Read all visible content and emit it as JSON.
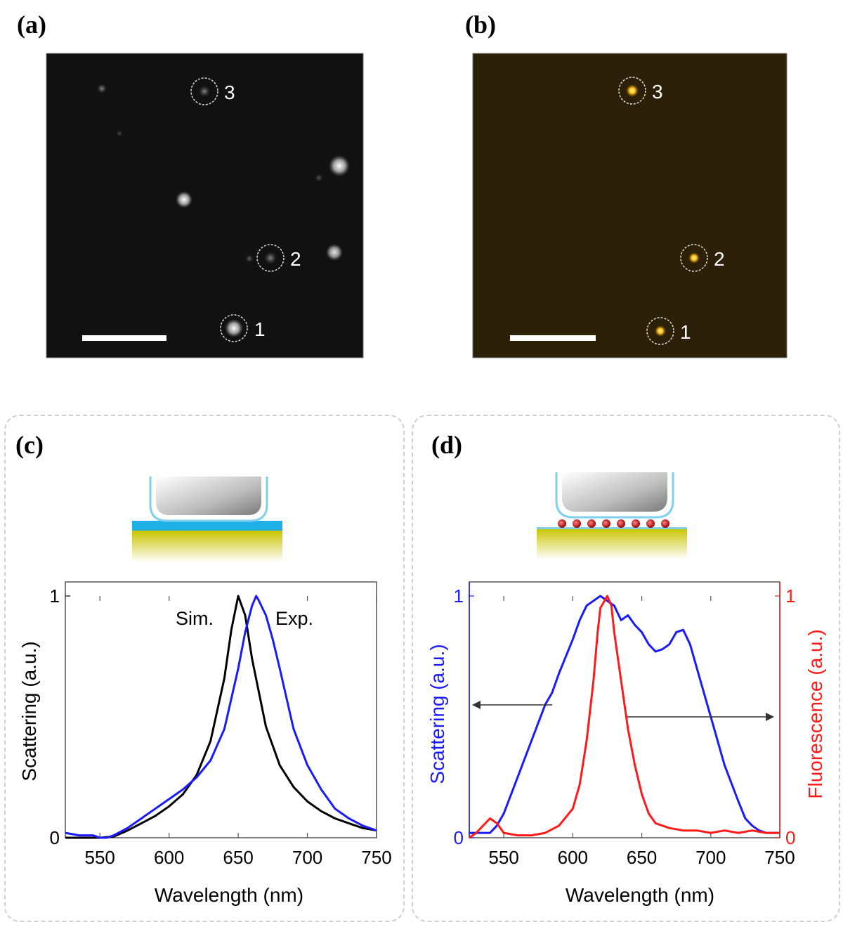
{
  "panels": {
    "a": {
      "label": "(a)",
      "particles": [
        "3",
        "2",
        "1"
      ]
    },
    "b": {
      "label": "(b)",
      "particles": [
        "3",
        "2",
        "1"
      ]
    },
    "c": {
      "label": "(c)"
    },
    "d": {
      "label": "(d)"
    }
  },
  "colors": {
    "blue": "#1a1aff",
    "red": "#ff1a1a",
    "black": "#000000",
    "axis": "#555555",
    "darkfield_bg": "#111111",
    "fluor_bg": "#2c2108",
    "fluor_spot": "#ffc21a"
  },
  "chart_data": [
    {
      "type": "line",
      "panel": "c",
      "xlabel": "Wavelength (nm)",
      "ylabel": "Scattering (a.u.)",
      "xlim": [
        525,
        750
      ],
      "ylim": [
        0,
        1
      ],
      "xticks": [
        550,
        600,
        650,
        700,
        750
      ],
      "yticks": [
        0,
        1
      ],
      "grid": false,
      "annotations": [
        "Sim.",
        "Exp."
      ],
      "series": [
        {
          "name": "Sim.",
          "color": "#000000",
          "x": [
            525,
            540,
            550,
            560,
            570,
            580,
            590,
            600,
            610,
            620,
            630,
            640,
            645,
            650,
            655,
            660,
            670,
            680,
            690,
            700,
            710,
            720,
            730,
            740,
            750
          ],
          "y": [
            0.0,
            0.0,
            0.0,
            0.005,
            0.03,
            0.06,
            0.09,
            0.13,
            0.18,
            0.26,
            0.4,
            0.66,
            0.86,
            1.0,
            0.92,
            0.74,
            0.46,
            0.3,
            0.21,
            0.15,
            0.11,
            0.08,
            0.06,
            0.04,
            0.03
          ]
        },
        {
          "name": "Exp.",
          "color": "#1a1aff",
          "x": [
            525,
            535,
            545,
            550,
            555,
            560,
            570,
            580,
            590,
            600,
            610,
            620,
            630,
            640,
            650,
            655,
            660,
            663,
            665,
            670,
            675,
            680,
            690,
            700,
            710,
            720,
            730,
            740,
            750
          ],
          "y": [
            0.02,
            0.01,
            0.01,
            0.0,
            0.0,
            0.01,
            0.04,
            0.08,
            0.12,
            0.16,
            0.2,
            0.25,
            0.32,
            0.45,
            0.7,
            0.85,
            0.96,
            1.0,
            0.98,
            0.92,
            0.82,
            0.7,
            0.45,
            0.3,
            0.2,
            0.12,
            0.08,
            0.05,
            0.03
          ]
        }
      ]
    },
    {
      "type": "line",
      "panel": "d",
      "xlabel": "Wavelength (nm)",
      "ylabel": "Scattering (a.u.)",
      "y2label": "Fluorescence (a.u.)",
      "xlim": [
        525,
        750
      ],
      "ylim": [
        0,
        1
      ],
      "y2lim": [
        0,
        1
      ],
      "xticks": [
        550,
        600,
        650,
        700,
        750
      ],
      "yticks": [
        0,
        1
      ],
      "y2ticks": [
        0,
        1
      ],
      "grid": false,
      "series": [
        {
          "name": "Scattering",
          "axis": "left",
          "color": "#1a1aff",
          "x": [
            525,
            535,
            540,
            545,
            550,
            560,
            570,
            580,
            585,
            590,
            600,
            605,
            610,
            615,
            620,
            625,
            630,
            635,
            640,
            645,
            650,
            655,
            660,
            665,
            670,
            675,
            680,
            685,
            690,
            700,
            710,
            720,
            725,
            730,
            735,
            740,
            745,
            750
          ],
          "y": [
            0.02,
            0.02,
            0.02,
            0.05,
            0.1,
            0.25,
            0.4,
            0.55,
            0.6,
            0.68,
            0.82,
            0.9,
            0.96,
            0.98,
            1.0,
            0.98,
            0.96,
            0.9,
            0.92,
            0.88,
            0.85,
            0.8,
            0.77,
            0.78,
            0.8,
            0.85,
            0.86,
            0.8,
            0.7,
            0.5,
            0.3,
            0.15,
            0.08,
            0.05,
            0.03,
            0.02,
            0.02,
            0.02
          ]
        },
        {
          "name": "Fluorescence",
          "axis": "right",
          "color": "#ff1a1a",
          "x": [
            525,
            530,
            535,
            540,
            545,
            550,
            560,
            570,
            580,
            590,
            600,
            605,
            610,
            615,
            618,
            620,
            623,
            625,
            628,
            630,
            635,
            640,
            645,
            650,
            655,
            660,
            665,
            670,
            680,
            690,
            700,
            710,
            720,
            730,
            740,
            750
          ],
          "y": [
            0.0,
            0.02,
            0.05,
            0.08,
            0.06,
            0.02,
            0.01,
            0.01,
            0.02,
            0.05,
            0.12,
            0.22,
            0.4,
            0.65,
            0.85,
            0.95,
            0.98,
            1.0,
            0.96,
            0.85,
            0.65,
            0.45,
            0.3,
            0.18,
            0.1,
            0.06,
            0.05,
            0.04,
            0.03,
            0.03,
            0.02,
            0.03,
            0.02,
            0.03,
            0.02,
            0.02
          ]
        }
      ]
    }
  ]
}
